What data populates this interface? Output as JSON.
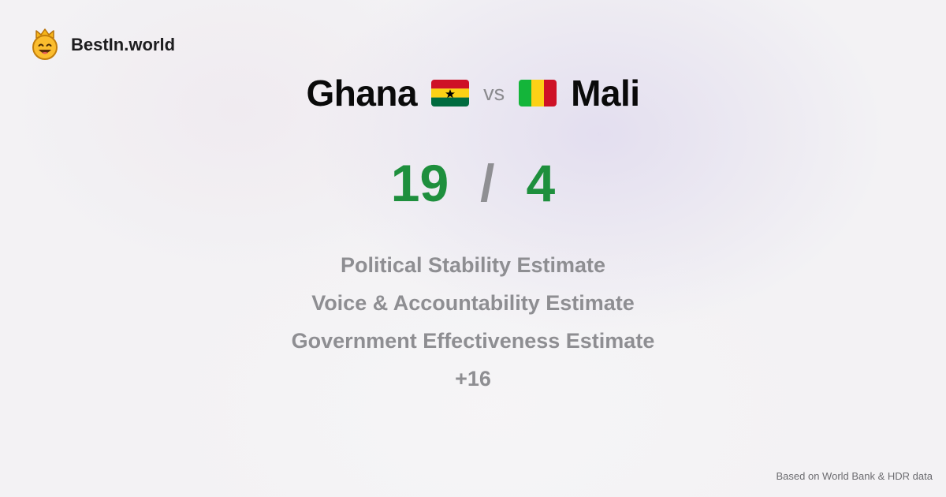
{
  "brand": {
    "name": "BestIn.world",
    "icon": "crown-smiley-icon"
  },
  "comparison": {
    "left_country": "Ghana",
    "left_flag": "ghana-flag-icon",
    "vs_label": "vs",
    "right_country": "Mali",
    "right_flag": "mali-flag-icon"
  },
  "score": {
    "left": "19",
    "separator": "/",
    "right": "4"
  },
  "metrics": [
    "Political Stability Estimate",
    "Voice & Accountability Estimate",
    "Government Effectiveness Estimate",
    "+16"
  ],
  "footer": {
    "source": "Based on World Bank & HDR data"
  },
  "colors": {
    "score": "#1e8f3d",
    "muted": "#8e8e92",
    "background": "#f3f2f4"
  }
}
